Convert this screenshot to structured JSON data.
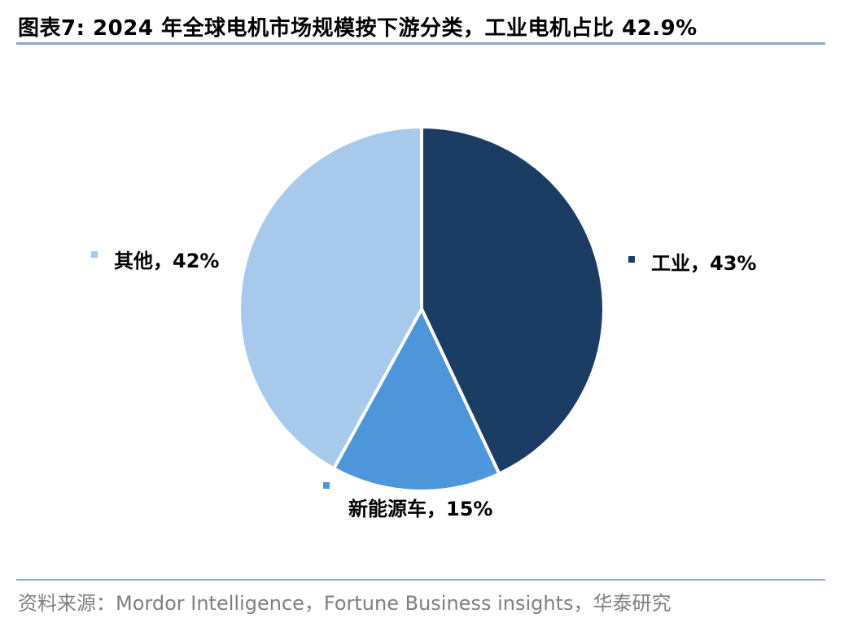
{
  "header": {
    "title": "图表7:  2024 年全球电机市场规模按下游分类，工业电机占比 42.9%"
  },
  "footer": {
    "source": "资料来源：Mordor Intelligence，Fortune Business insights，华泰研究"
  },
  "chart_data": {
    "type": "pie",
    "title": "2024 年全球电机市场规模按下游分类，工业电机占比 42.9%",
    "slices": [
      {
        "name": "工业",
        "value": 43,
        "label": "工业，43%",
        "color": "#1b3c63"
      },
      {
        "name": "新能源车",
        "value": 15,
        "label": "新能源车，15%",
        "color": "#4e96da"
      },
      {
        "name": "其他",
        "value": 42,
        "label": "其他，42%",
        "color": "#a6c9ec"
      }
    ],
    "start_angle_deg": 0,
    "direction": "clockwise",
    "legend": "none"
  }
}
